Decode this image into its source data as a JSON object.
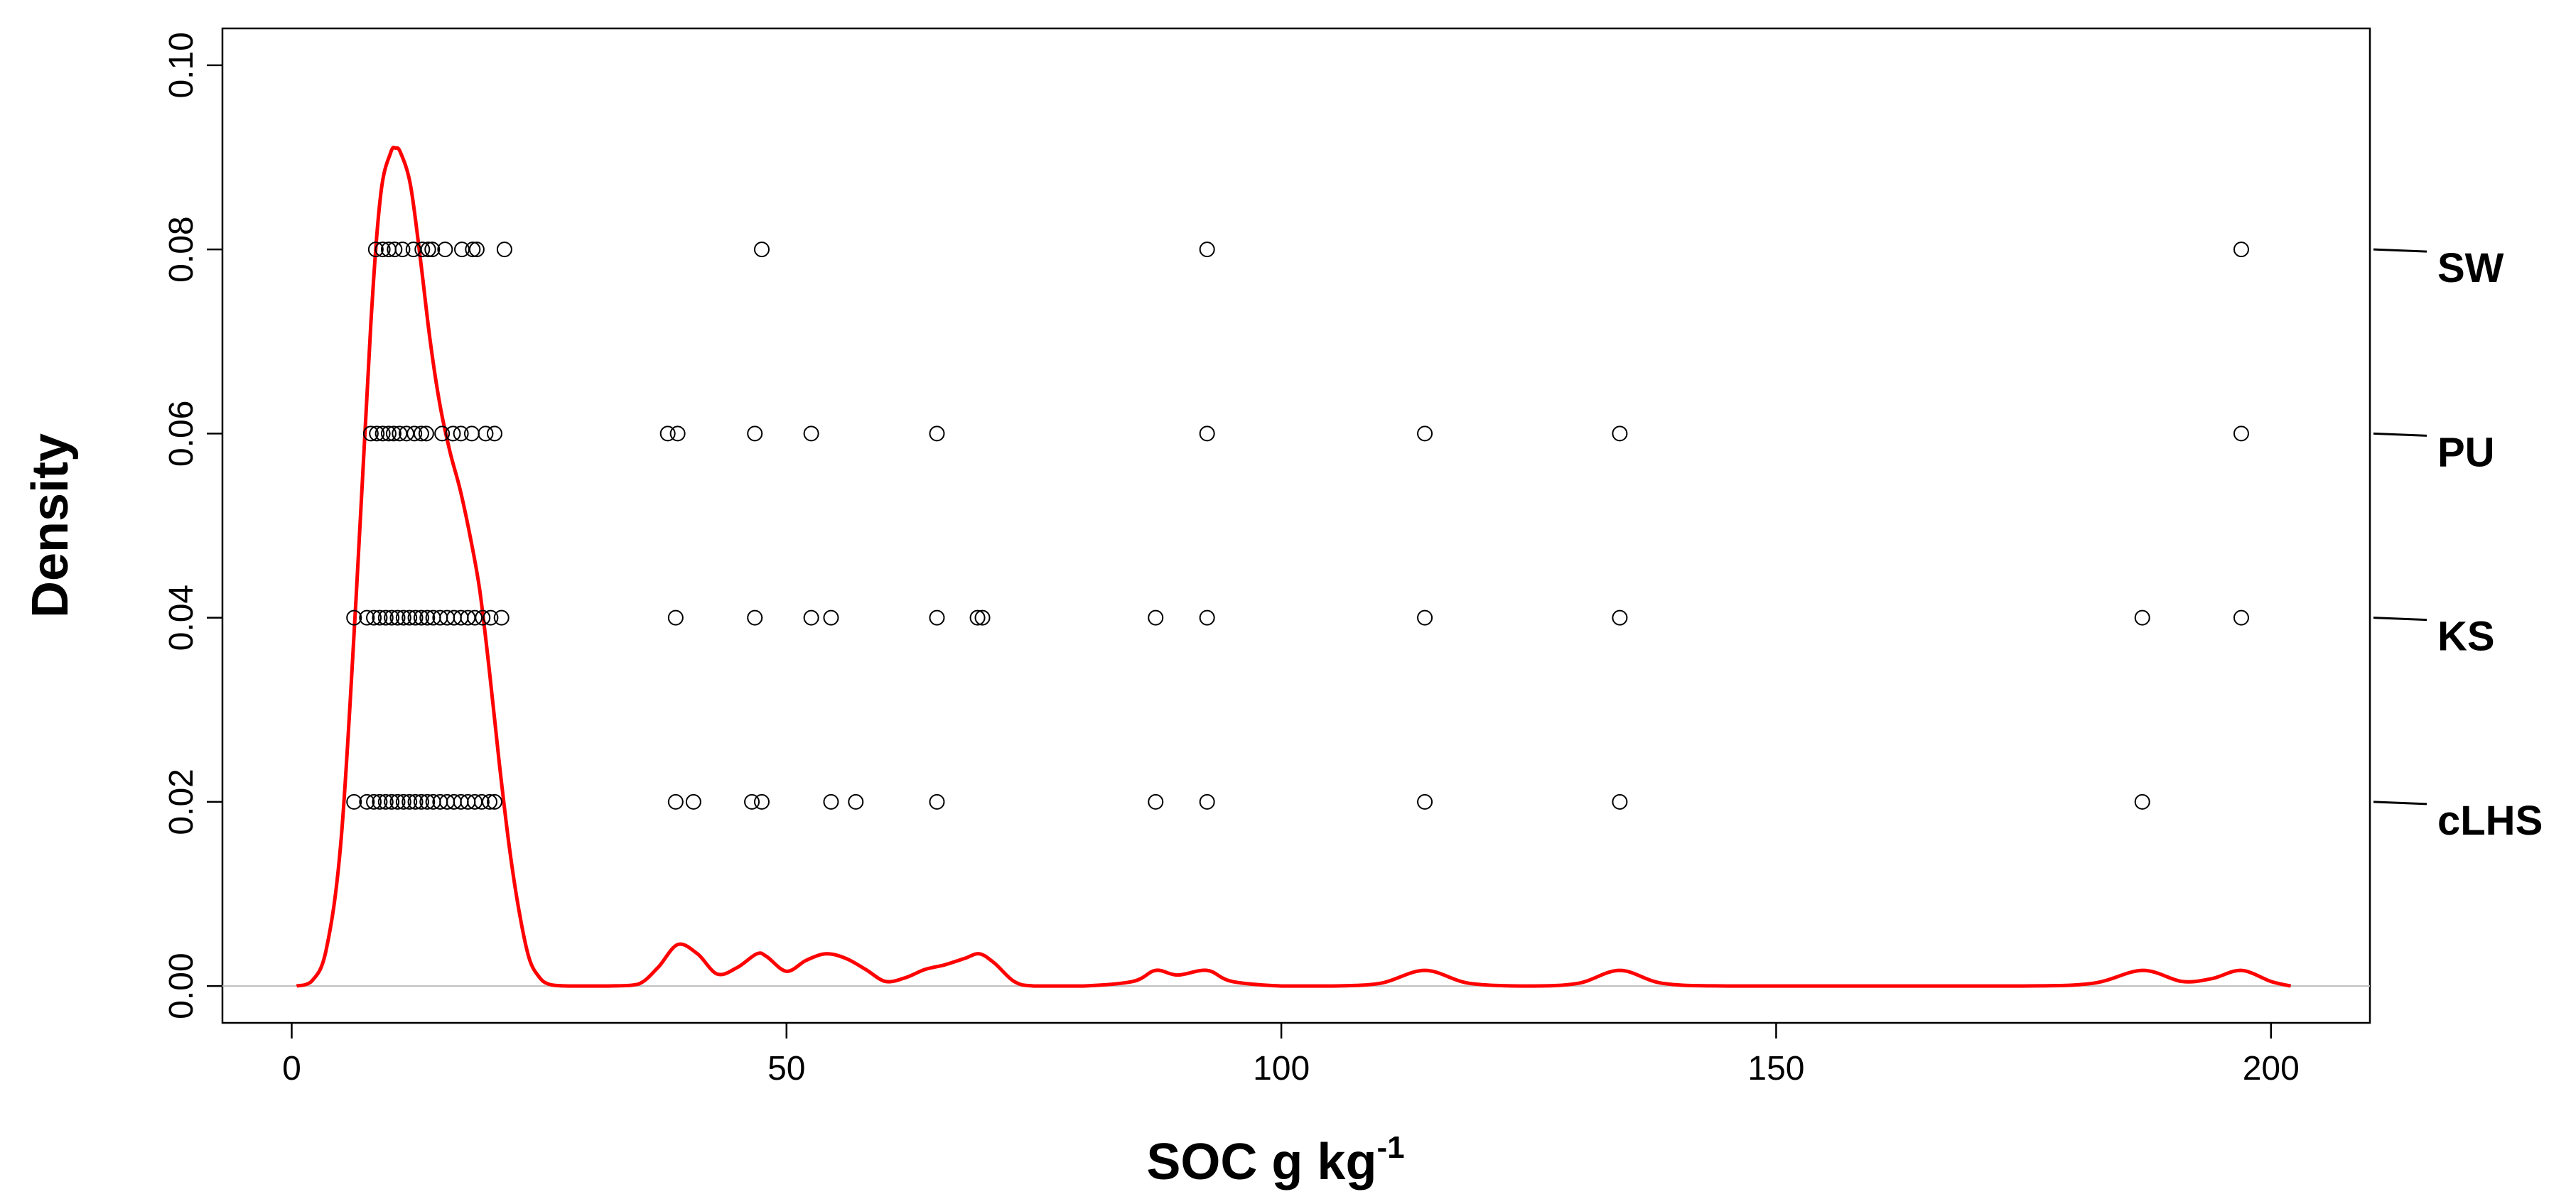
{
  "chart_data": {
    "type": "scatter",
    "title": "",
    "xlabel": "SOC g kg",
    "xlabel_superscript": "-1",
    "ylabel": "Density",
    "xlim": [
      -7,
      210
    ],
    "ylim": [
      -0.004,
      0.104
    ],
    "xticks": [
      0,
      50,
      100,
      150,
      200
    ],
    "xtick_labels": [
      "0",
      "50",
      "100",
      "150",
      "200"
    ],
    "yticks": [
      0.0,
      0.02,
      0.04,
      0.06,
      0.08,
      0.1
    ],
    "ytick_labels": [
      "0.00",
      "0.02",
      "0.04",
      "0.06",
      "0.08",
      "0.10"
    ],
    "grid": false,
    "zero_line": true,
    "series": [
      {
        "name": "SW",
        "y": 0.08,
        "x": [
          8.5,
          9.2,
          9.8,
          10.4,
          11.2,
          12.3,
          13.2,
          13.8,
          14.2,
          15.5,
          17.2,
          18.3,
          18.7,
          21.5,
          47.5,
          92.5,
          197
        ]
      },
      {
        "name": "PU",
        "y": 0.06,
        "x": [
          8.0,
          8.6,
          9.2,
          9.8,
          10.3,
          10.9,
          11.6,
          12.4,
          13.1,
          13.6,
          15.2,
          16.3,
          17.1,
          18.2,
          19.6,
          20.5,
          38.0,
          39.0,
          46.8,
          52.5,
          65.2,
          92.5,
          114.5,
          134.2,
          197
        ]
      },
      {
        "name": "KS",
        "y": 0.04,
        "x": [
          6.3,
          7.6,
          8.3,
          8.9,
          9.5,
          10.1,
          10.7,
          11.3,
          11.9,
          12.5,
          13.1,
          13.7,
          14.3,
          15.0,
          15.7,
          16.4,
          17.1,
          17.8,
          18.5,
          19.3,
          20.1,
          21.2,
          38.8,
          46.8,
          52.5,
          54.5,
          65.2,
          69.3,
          69.8,
          87.3,
          92.5,
          114.5,
          134.2,
          187,
          197
        ]
      },
      {
        "name": "cLHS",
        "y": 0.02,
        "x": [
          6.3,
          7.6,
          8.3,
          8.9,
          9.5,
          10.1,
          10.7,
          11.3,
          11.9,
          12.5,
          13.1,
          13.7,
          14.3,
          15.0,
          15.7,
          16.4,
          17.1,
          17.8,
          18.5,
          19.2,
          20.0,
          20.5,
          38.8,
          40.6,
          46.5,
          47.5,
          54.5,
          57.0,
          65.2,
          87.3,
          92.5,
          114.5,
          134.2,
          187
        ]
      }
    ],
    "density": {
      "name": "density",
      "color": "#ff0000",
      "x": [
        0.5,
        2,
        3.5,
        5,
        6.5,
        8,
        9,
        10,
        10.5,
        11,
        12,
        13,
        14,
        15,
        16,
        17,
        18,
        19,
        20,
        21,
        22,
        23,
        24,
        25,
        26,
        28,
        32,
        35,
        37,
        39,
        41,
        43,
        45,
        47,
        48,
        50,
        52,
        54,
        56,
        58,
        60,
        62,
        64,
        66,
        68,
        69.5,
        71,
        73,
        75,
        80,
        85,
        87.3,
        89.5,
        92.5,
        95,
        100,
        105,
        110,
        114.5,
        119,
        125,
        130,
        134.2,
        138.5,
        145,
        160,
        175,
        182,
        187,
        191,
        194,
        197,
        200,
        202
      ],
      "y": [
        0.0,
        0.0005,
        0.004,
        0.016,
        0.042,
        0.072,
        0.086,
        0.0905,
        0.091,
        0.0905,
        0.087,
        0.079,
        0.07,
        0.063,
        0.058,
        0.054,
        0.049,
        0.043,
        0.034,
        0.024,
        0.015,
        0.008,
        0.003,
        0.001,
        0.0002,
        0.0,
        0.0,
        0.0002,
        0.002,
        0.0045,
        0.0035,
        0.0013,
        0.002,
        0.0035,
        0.0032,
        0.0016,
        0.0028,
        0.0035,
        0.003,
        0.0018,
        0.0005,
        0.0009,
        0.0018,
        0.0023,
        0.003,
        0.0035,
        0.0025,
        0.0005,
        0.0,
        0.0,
        0.0005,
        0.0017,
        0.0012,
        0.0017,
        0.0005,
        0.0,
        0.0,
        0.0003,
        0.0017,
        0.0003,
        0.0,
        0.0003,
        0.0017,
        0.0003,
        0.0,
        0.0,
        0.0,
        0.0003,
        0.0017,
        0.0005,
        0.0008,
        0.0017,
        0.0005,
        0.0
      ]
    }
  }
}
